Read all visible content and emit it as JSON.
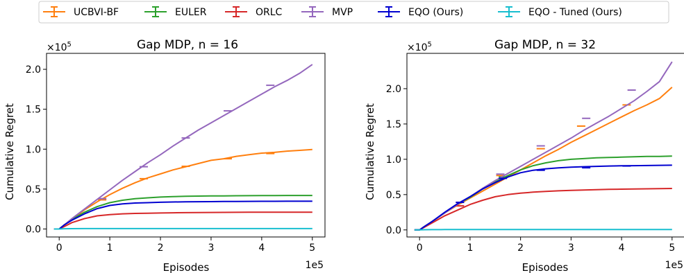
{
  "legend": {
    "placement": "top-center",
    "entries": [
      {
        "name": "UCBVI-BF",
        "color": "#ff7f0e"
      },
      {
        "name": "EULER",
        "color": "#2ca02c"
      },
      {
        "name": "ORLC",
        "color": "#d62728"
      },
      {
        "name": "MVP",
        "color": "#9467bd"
      },
      {
        "name": "EQO (Ours)",
        "color": "#0000d0"
      },
      {
        "name": "EQO - Tuned (Ours)",
        "color": "#17becf"
      }
    ]
  },
  "chart_data": [
    {
      "type": "line",
      "title": "Gap MDP, n = 16",
      "xlabel": "Episodes",
      "ylabel": "Cumulative Regret",
      "x_scale_label": "1e5",
      "y_scale_label": "×10",
      "y_scale_exponent": "5",
      "xlim": [
        -0.25,
        5.25
      ],
      "ylim": [
        -0.1,
        2.2
      ],
      "xticks": [
        0,
        1,
        2,
        3,
        4,
        5
      ],
      "xtick_labels": [
        "0",
        "1",
        "2",
        "3",
        "4",
        "5"
      ],
      "yticks": [
        0,
        0.5,
        1,
        1.5,
        2
      ],
      "ytick_labels": [
        "0.0",
        "0.5",
        "1.0",
        "1.5",
        "2.0"
      ],
      "grid": false,
      "x": [
        -0.1,
        0,
        0.1,
        0.25,
        0.5,
        0.75,
        1,
        1.25,
        1.5,
        1.75,
        2,
        2.25,
        2.5,
        2.75,
        3,
        3.25,
        3.5,
        3.75,
        4,
        4.25,
        4.5,
        4.75,
        5
      ],
      "series": [
        {
          "name": "UCBVI-BF",
          "color": "#ff7f0e",
          "values": [
            0,
            0,
            0.05,
            0.12,
            0.24,
            0.34,
            0.43,
            0.51,
            0.58,
            0.64,
            0.69,
            0.74,
            0.78,
            0.82,
            0.86,
            0.88,
            0.91,
            0.93,
            0.95,
            0.96,
            0.975,
            0.985,
            0.995
          ],
          "errorbar_x": [
            0.85,
            1.67,
            2.5,
            3.33,
            4.17
          ],
          "errorbar_y": [
            0.365,
            0.63,
            0.785,
            0.88,
            0.945
          ]
        },
        {
          "name": "EULER",
          "color": "#2ca02c",
          "values": [
            0,
            0,
            0.05,
            0.12,
            0.21,
            0.28,
            0.33,
            0.36,
            0.38,
            0.39,
            0.4,
            0.405,
            0.41,
            0.412,
            0.414,
            0.415,
            0.416,
            0.417,
            0.418,
            0.419,
            0.42,
            0.42,
            0.42
          ],
          "errorbar_x": [],
          "errorbar_y": []
        },
        {
          "name": "ORLC",
          "color": "#d62728",
          "values": [
            0,
            0,
            0.03,
            0.08,
            0.13,
            0.165,
            0.18,
            0.19,
            0.195,
            0.198,
            0.2,
            0.203,
            0.205,
            0.206,
            0.207,
            0.208,
            0.209,
            0.21,
            0.21,
            0.21,
            0.21,
            0.21,
            0.21
          ],
          "errorbar_x": [],
          "errorbar_y": []
        },
        {
          "name": "MVP",
          "color": "#9467bd",
          "values": [
            0,
            0,
            0.05,
            0.13,
            0.25,
            0.37,
            0.49,
            0.61,
            0.72,
            0.83,
            0.93,
            1.04,
            1.14,
            1.24,
            1.33,
            1.42,
            1.51,
            1.6,
            1.69,
            1.78,
            1.86,
            1.95,
            2.06
          ],
          "errorbar_x": [
            0.85,
            1.67,
            2.5,
            3.33,
            4.17
          ],
          "errorbar_y": [
            0.38,
            0.78,
            1.14,
            1.48,
            1.8
          ]
        },
        {
          "name": "EQO (Ours)",
          "color": "#0000d0",
          "values": [
            0,
            0,
            0.05,
            0.11,
            0.19,
            0.255,
            0.295,
            0.315,
            0.325,
            0.33,
            0.335,
            0.338,
            0.34,
            0.342,
            0.343,
            0.344,
            0.345,
            0.346,
            0.347,
            0.347,
            0.348,
            0.348,
            0.348
          ],
          "errorbar_x": [],
          "errorbar_y": []
        },
        {
          "name": "EQO - Tuned (Ours)",
          "color": "#17becf",
          "values": [
            0,
            0,
            0.003,
            0.004,
            0.005,
            0.005,
            0.005,
            0.005,
            0.005,
            0.005,
            0.005,
            0.005,
            0.005,
            0.005,
            0.005,
            0.005,
            0.005,
            0.005,
            0.005,
            0.005,
            0.005,
            0.005,
            0.005
          ],
          "errorbar_x": [],
          "errorbar_y": []
        }
      ]
    },
    {
      "type": "line",
      "title": "Gap MDP, n = 32",
      "xlabel": "Episodes",
      "ylabel": "Cumulative Regret",
      "x_scale_label": "1e5",
      "y_scale_label": "×10",
      "y_scale_exponent": "5",
      "xlim": [
        -0.25,
        5.25
      ],
      "ylim": [
        -0.1,
        2.5
      ],
      "xticks": [
        0,
        1,
        2,
        3,
        4,
        5
      ],
      "xtick_labels": [
        "0",
        "1",
        "2",
        "3",
        "4",
        "5"
      ],
      "yticks": [
        0,
        0.5,
        1,
        1.5,
        2
      ],
      "ytick_labels": [
        "0.0",
        "0.5",
        "1.0",
        "1.5",
        "2.0"
      ],
      "grid": false,
      "x": [
        -0.1,
        0,
        0.1,
        0.25,
        0.5,
        0.75,
        1,
        1.25,
        1.5,
        1.75,
        2,
        2.25,
        2.5,
        2.75,
        3,
        3.25,
        3.5,
        3.75,
        4,
        4.25,
        4.5,
        4.75,
        5
      ],
      "series": [
        {
          "name": "UCBVI-BF",
          "color": "#ff7f0e",
          "values": [
            0,
            0,
            0.05,
            0.12,
            0.24,
            0.35,
            0.45,
            0.55,
            0.65,
            0.75,
            0.85,
            0.95,
            1.05,
            1.14,
            1.24,
            1.33,
            1.42,
            1.51,
            1.6,
            1.69,
            1.77,
            1.86,
            2.02
          ],
          "errorbar_x": [
            0.8,
            1.6,
            2.4,
            3.2,
            4.1
          ],
          "errorbar_y": [
            0.39,
            0.77,
            1.15,
            1.47,
            1.77
          ]
        },
        {
          "name": "EULER",
          "color": "#2ca02c",
          "values": [
            0,
            0,
            0.05,
            0.12,
            0.24,
            0.36,
            0.46,
            0.58,
            0.68,
            0.77,
            0.85,
            0.91,
            0.95,
            0.98,
            1.0,
            1.01,
            1.02,
            1.025,
            1.03,
            1.035,
            1.04,
            1.04,
            1.045
          ],
          "errorbar_x": [
            1.65
          ],
          "errorbar_y": [
            0.75
          ]
        },
        {
          "name": "ORLC",
          "color": "#d62728",
          "values": [
            0,
            0,
            0.04,
            0.1,
            0.2,
            0.28,
            0.36,
            0.42,
            0.47,
            0.5,
            0.52,
            0.535,
            0.545,
            0.553,
            0.56,
            0.565,
            0.57,
            0.574,
            0.577,
            0.58,
            0.582,
            0.585,
            0.587
          ],
          "errorbar_x": [
            0.8
          ],
          "errorbar_y": [
            0.34
          ]
        },
        {
          "name": "MVP",
          "color": "#9467bd",
          "values": [
            0,
            0,
            0.05,
            0.12,
            0.24,
            0.36,
            0.47,
            0.59,
            0.7,
            0.8,
            0.9,
            1.0,
            1.1,
            1.2,
            1.3,
            1.41,
            1.51,
            1.61,
            1.72,
            1.83,
            1.96,
            2.1,
            2.38
          ],
          "errorbar_x": [
            1.6,
            2.4,
            3.3,
            4.2
          ],
          "errorbar_y": [
            0.79,
            1.19,
            1.58,
            1.98
          ]
        },
        {
          "name": "EQO (Ours)",
          "color": "#0000d0",
          "values": [
            0,
            0,
            0.05,
            0.12,
            0.25,
            0.37,
            0.47,
            0.58,
            0.67,
            0.75,
            0.81,
            0.845,
            0.865,
            0.878,
            0.888,
            0.895,
            0.9,
            0.905,
            0.908,
            0.91,
            0.912,
            0.914,
            0.916
          ],
          "errorbar_x": [
            0.8,
            1.65,
            2.4,
            3.3,
            4.1
          ],
          "errorbar_y": [
            0.39,
            0.73,
            0.845,
            0.88,
            0.905
          ]
        },
        {
          "name": "EQO - Tuned (Ours)",
          "color": "#17becf",
          "values": [
            0,
            0,
            0.003,
            0.004,
            0.005,
            0.005,
            0.005,
            0.005,
            0.005,
            0.005,
            0.005,
            0.005,
            0.005,
            0.005,
            0.005,
            0.005,
            0.005,
            0.005,
            0.005,
            0.005,
            0.005,
            0.005,
            0.005
          ],
          "errorbar_x": [],
          "errorbar_y": []
        }
      ]
    }
  ]
}
